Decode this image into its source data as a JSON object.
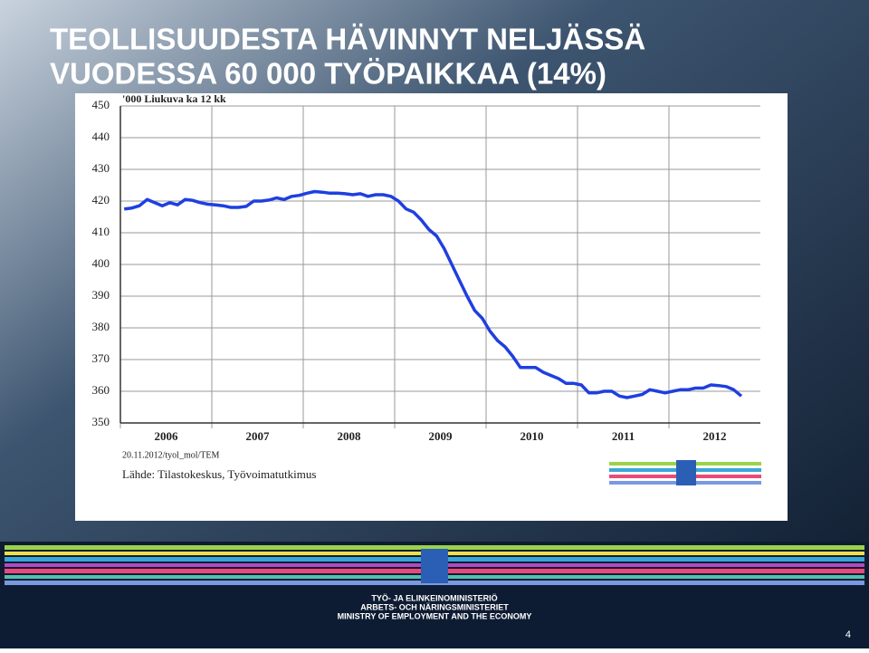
{
  "title_lines": [
    "TEOLLISUUDESTA  HÄVINNYT NELJÄSSÄ",
    "VUODESSA 60 000 TYÖPAIKKAA (14%)"
  ],
  "chart_data": {
    "type": "line",
    "y_label": "'000 Liukuva ka 12 kk",
    "categories": [
      null,
      null,
      null,
      null,
      null,
      null,
      "2006",
      null,
      null,
      null,
      null,
      null,
      null,
      null,
      null,
      null,
      null,
      null,
      "2007",
      null,
      null,
      null,
      null,
      null,
      null,
      null,
      null,
      null,
      null,
      null,
      "2008",
      null,
      null,
      null,
      null,
      null,
      null,
      null,
      null,
      null,
      null,
      null,
      "2009",
      null,
      null,
      null,
      null,
      null,
      null,
      null,
      null,
      null,
      null,
      null,
      "2010",
      null,
      null,
      null,
      null,
      null,
      null,
      null,
      null,
      null,
      null,
      null,
      "2011",
      null,
      null,
      null,
      null,
      null,
      null,
      null,
      null,
      null,
      null,
      null,
      "2012",
      null,
      null,
      null
    ],
    "values": [
      417.5,
      417.8,
      418.5,
      420.5,
      419.5,
      418.5,
      419.5,
      418.8,
      420.5,
      420.2,
      419.5,
      419.0,
      418.8,
      418.5,
      418.0,
      418.0,
      418.3,
      420.0,
      420.0,
      420.3,
      421.0,
      420.5,
      421.5,
      421.8,
      422.5,
      423.0,
      422.8,
      422.5,
      422.5,
      422.3,
      422.0,
      422.3,
      421.5,
      422.0,
      422.0,
      421.5,
      420.0,
      417.5,
      416.5,
      414.0,
      411.0,
      409.0,
      405.0,
      400.0,
      395.0,
      390.0,
      385.5,
      383.0,
      379.0,
      376.0,
      374.0,
      371.0,
      367.5,
      367.5,
      367.5,
      366.0,
      365.0,
      364.0,
      362.5,
      362.5,
      362.0,
      359.5,
      359.5,
      360.0,
      360.0,
      358.5,
      358.0,
      358.5,
      359.0,
      360.5,
      360.0,
      359.5,
      360.0,
      360.5,
      360.5,
      361.0,
      361.0,
      362.0,
      361.8,
      361.5,
      360.5,
      358.5
    ],
    "color": "#1f3fe0",
    "ylim": [
      350,
      450
    ],
    "yticks": [
      350,
      360,
      370,
      380,
      390,
      400,
      410,
      420,
      430,
      440,
      450
    ],
    "grid": true,
    "notes": [
      "20.11.2012/tyol_mol/TEM",
      "Lähde: Tilastokeskus, Työvoimatutkimus"
    ]
  },
  "logo_lines": [
    "TYÖ- JA ELINKEINOMINISTERIÖ",
    "ARBETS- OCH NÄRINGSMINISTERIET",
    "MINISTRY OF EMPLOYMENT AND THE ECONOMY"
  ],
  "page_number": "4"
}
